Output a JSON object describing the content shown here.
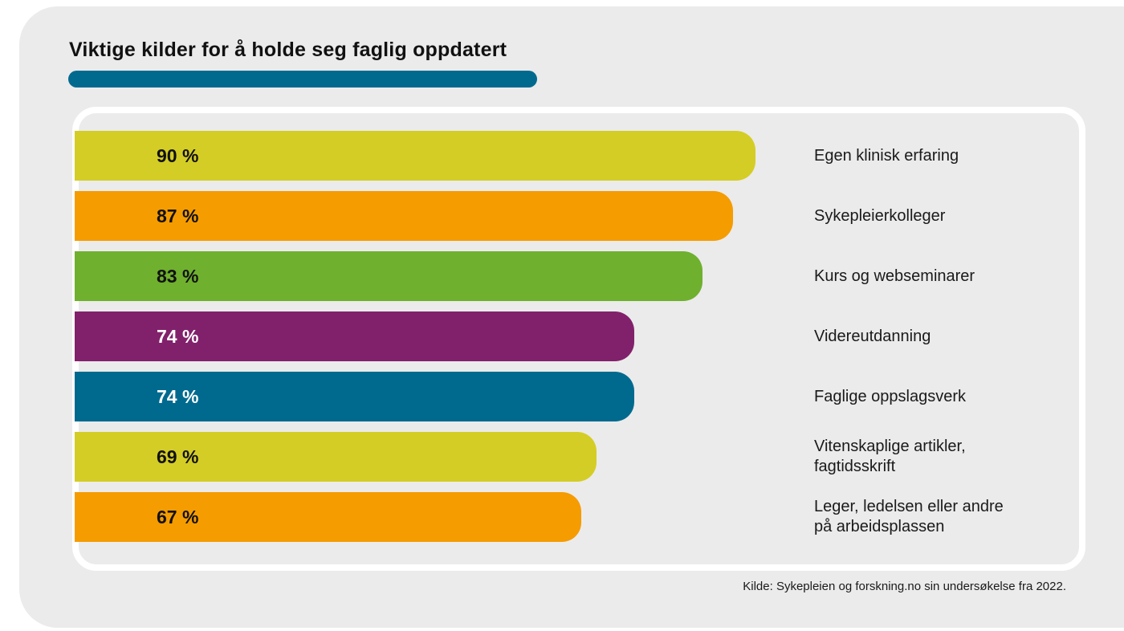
{
  "chart_data": {
    "type": "bar",
    "orientation": "horizontal",
    "title": "Viktige kilder for å holde seg faglig oppdatert",
    "source": "Kilde: Sykepleien og forskning.no sin undersøkelse fra 2022.",
    "unit": "%",
    "xlim": [
      0,
      100
    ],
    "grid": false,
    "categories": [
      [
        "Egen klinisk erfaring"
      ],
      [
        "Sykepleierkolleger"
      ],
      [
        "Kurs og webseminarer"
      ],
      [
        "Videreutdanning"
      ],
      [
        "Faglige oppslagsverk"
      ],
      [
        "Vitenskaplige artikler,",
        "fagtidsskrift"
      ],
      [
        "Leger, ledelsen eller andre",
        "på arbeidsplassen"
      ]
    ],
    "values": [
      90,
      87,
      83,
      74,
      74,
      69,
      67
    ],
    "value_labels": [
      "90 %",
      "87 %",
      "83 %",
      "74 %",
      "74 %",
      "69 %",
      "67 %"
    ],
    "colors": [
      "#d4cd25",
      "#f59c00",
      "#6fb02e",
      "#81216b",
      "#006a8e",
      "#d4cd25",
      "#f59c00"
    ],
    "value_label_colors": [
      "#111111",
      "#111111",
      "#111111",
      "#ffffff",
      "#ffffff",
      "#111111",
      "#111111"
    ],
    "title_bar_color": "#006a8e"
  }
}
